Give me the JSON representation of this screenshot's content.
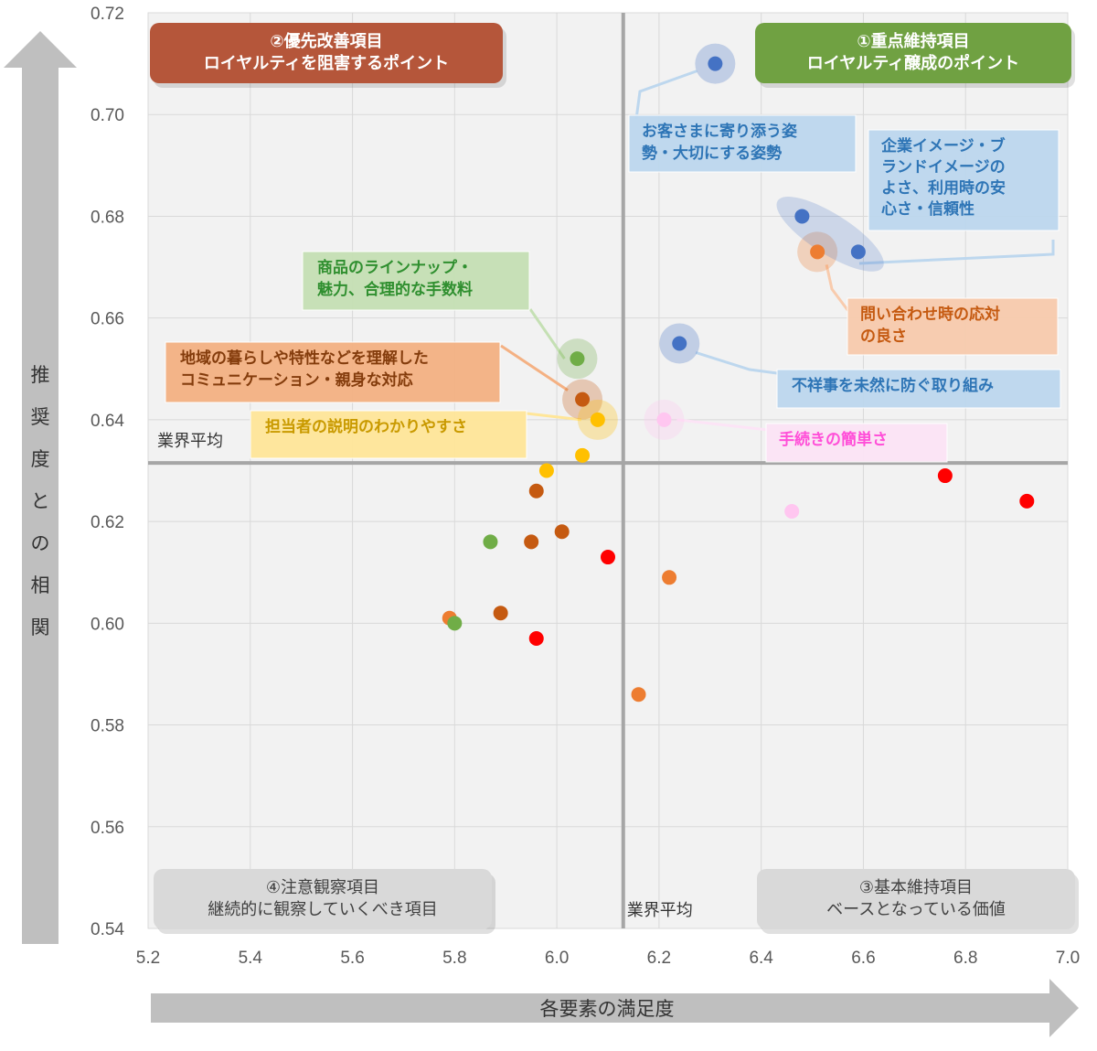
{
  "chart_data": {
    "type": "scatter",
    "title": "",
    "xlabel": "各要素の満足度",
    "ylabel": "推奨度との相関",
    "xlim": [
      5.2,
      7.0
    ],
    "ylim": [
      0.54,
      0.72
    ],
    "x_ticks": [
      "5.2",
      "5.4",
      "5.6",
      "5.8",
      "6.0",
      "6.2",
      "6.4",
      "6.6",
      "6.8",
      "7.0"
    ],
    "y_ticks": [
      "0.72",
      "0.70",
      "0.68",
      "0.66",
      "0.64",
      "0.62",
      "0.60",
      "0.58",
      "0.56",
      "0.54"
    ],
    "grid": true,
    "avg_x": 6.13,
    "avg_y": 0.6315,
    "avg_x_label": "業界平均",
    "avg_y_label": "業界平均",
    "quadrants": [
      {
        "id": "q1",
        "lines": [
          "①重点維持項目",
          "ロイヤルティ醸成のポイント"
        ],
        "color": "#70a142"
      },
      {
        "id": "q2",
        "lines": [
          "②優先改善項目",
          "ロイヤルティを阻害するポイント"
        ],
        "color": "#b5563a"
      },
      {
        "id": "q3",
        "lines": [
          "③基本維持項目",
          "ベースとなっている価値"
        ],
        "color": "#d9d9d9"
      },
      {
        "id": "q4",
        "lines": [
          "④注意観察項目",
          "継続的に観察していくべき項目"
        ],
        "color": "#d9d9d9"
      }
    ],
    "annotations": [
      {
        "id": "a1",
        "lines": [
          "お客さまに寄り添う姿",
          "勢・大切にする姿勢"
        ],
        "fill": "#bdd7ee",
        "text": "#2e75b6"
      },
      {
        "id": "a2",
        "lines": [
          "企業イメージ・ブ",
          "ランドイメージの",
          "よさ、利用時の安",
          "心さ・信頼性"
        ],
        "fill": "#bdd7ee",
        "text": "#2e75b6"
      },
      {
        "id": "a3",
        "lines": [
          "商品のラインナップ・",
          "魅力、合理的な手数料"
        ],
        "fill": "#c5e0b4",
        "text": "#2f8f2f"
      },
      {
        "id": "a4",
        "lines": [
          "地域の暮らしや特性などを理解した",
          "コミュニケーション・親身な対応"
        ],
        "fill": "#f4b183",
        "text": "#843c0c"
      },
      {
        "id": "a5",
        "lines": [
          "担当者の説明のわかりやすさ"
        ],
        "fill": "#ffe699",
        "text": "#c99a00"
      },
      {
        "id": "a6",
        "lines": [
          "問い合わせ時の応対",
          "の良さ"
        ],
        "fill": "#f8cbad",
        "text": "#c55a11"
      },
      {
        "id": "a7",
        "lines": [
          "不祥事を未然に防ぐ取り組み"
        ],
        "fill": "#bdd7ee",
        "text": "#2e75b6"
      },
      {
        "id": "a8",
        "lines": [
          "手続きの簡単さ"
        ],
        "fill": "#fce4f6",
        "text": "#ff4fd8"
      }
    ],
    "points": [
      {
        "x": 6.31,
        "y": 0.71,
        "color": "#4472c4",
        "halo": true
      },
      {
        "x": 6.48,
        "y": 0.68,
        "color": "#4472c4"
      },
      {
        "x": 6.59,
        "y": 0.673,
        "color": "#4472c4"
      },
      {
        "x": 6.51,
        "y": 0.673,
        "color": "#ed7d31",
        "halo": true
      },
      {
        "x": 6.24,
        "y": 0.655,
        "color": "#4472c4",
        "halo": true
      },
      {
        "x": 6.04,
        "y": 0.652,
        "color": "#70ad47",
        "halo": true
      },
      {
        "x": 6.05,
        "y": 0.644,
        "color": "#c55a11",
        "halo": true
      },
      {
        "x": 6.08,
        "y": 0.64,
        "color": "#ffc000",
        "halo": true
      },
      {
        "x": 6.21,
        "y": 0.64,
        "color": "#ffc6f0",
        "halo": true
      },
      {
        "x": 6.05,
        "y": 0.633,
        "color": "#ffc000"
      },
      {
        "x": 5.98,
        "y": 0.63,
        "color": "#ffc000"
      },
      {
        "x": 5.96,
        "y": 0.626,
        "color": "#c55a11"
      },
      {
        "x": 6.76,
        "y": 0.629,
        "color": "#ff0000"
      },
      {
        "x": 6.92,
        "y": 0.624,
        "color": "#ff0000"
      },
      {
        "x": 6.46,
        "y": 0.622,
        "color": "#ffc6f0"
      },
      {
        "x": 5.87,
        "y": 0.616,
        "color": "#70ad47"
      },
      {
        "x": 5.95,
        "y": 0.616,
        "color": "#c55a11"
      },
      {
        "x": 6.01,
        "y": 0.618,
        "color": "#c55a11"
      },
      {
        "x": 6.1,
        "y": 0.613,
        "color": "#ff0000"
      },
      {
        "x": 6.22,
        "y": 0.609,
        "color": "#ed7d31"
      },
      {
        "x": 5.79,
        "y": 0.601,
        "color": "#ed7d31"
      },
      {
        "x": 5.8,
        "y": 0.6,
        "color": "#70ad47"
      },
      {
        "x": 5.89,
        "y": 0.602,
        "color": "#c55a11"
      },
      {
        "x": 5.96,
        "y": 0.597,
        "color": "#ff0000"
      },
      {
        "x": 6.16,
        "y": 0.586,
        "color": "#ed7d31"
      }
    ]
  }
}
